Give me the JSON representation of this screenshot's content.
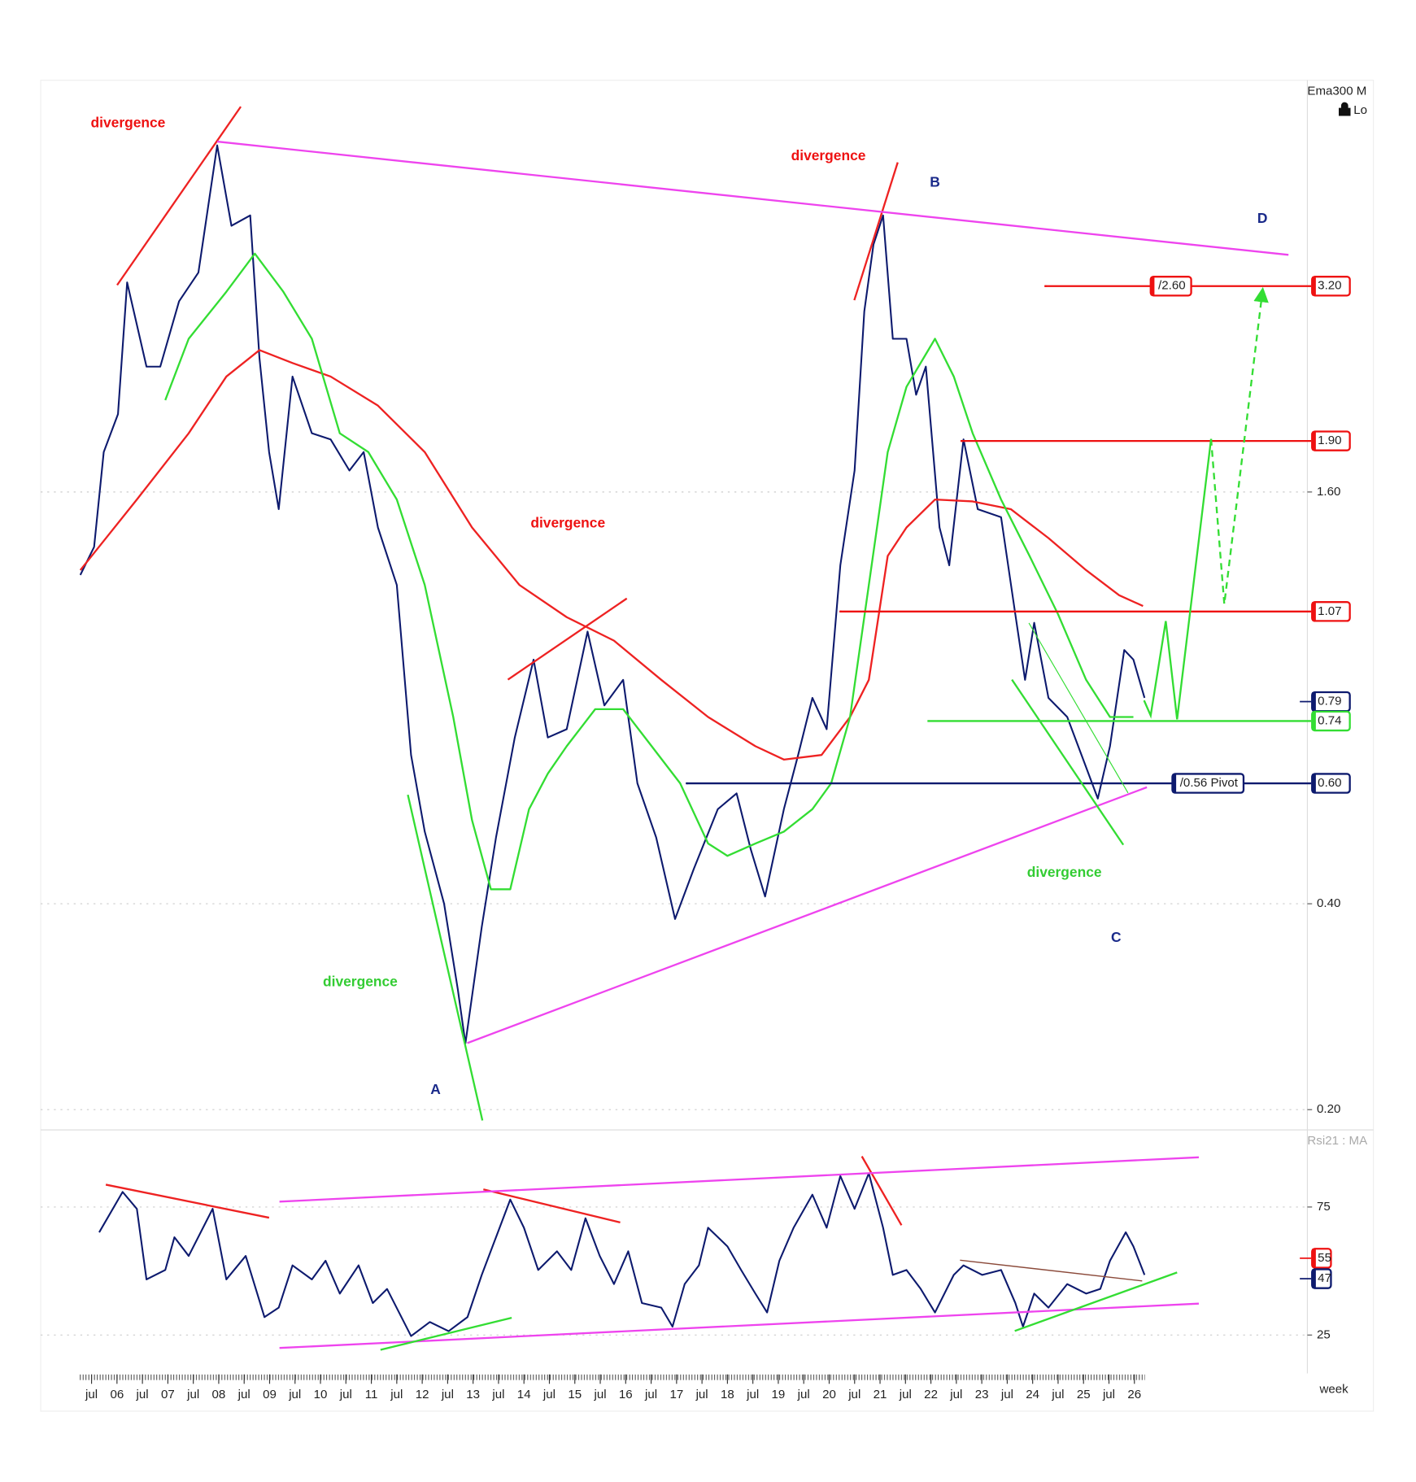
{
  "chart_data": [
    {
      "type": "line",
      "title": "Ema300 M",
      "subtitle": "Lo",
      "log_scale": true,
      "grid": true,
      "xlim": [
        2004.5,
        2029.4
      ],
      "ylim": [
        0.188,
        6.4
      ],
      "yticks": [
        {
          "value": 1.6,
          "label": "1.60"
        },
        {
          "value": 0.4,
          "label": "0.40"
        },
        {
          "value": 0.2,
          "label": "0.20"
        }
      ],
      "series": [
        {
          "color": "#0d1a6e",
          "x": [
            2005.28,
            2005.55,
            2005.74,
            2006.02,
            2006.2,
            2006.58,
            2006.85,
            2007.22,
            2007.6,
            2007.97,
            2008.25,
            2008.62,
            2008.8,
            2008.99,
            2009.18,
            2009.45,
            2009.83,
            2010.2,
            2010.57,
            2010.85,
            2011.13,
            2011.5,
            2011.78,
            2012.05,
            2012.43,
            2012.7,
            2012.85,
            2013.17,
            2013.45,
            2013.82,
            2014.19,
            2014.47,
            2014.84,
            2015.25,
            2015.58,
            2015.95,
            2016.23,
            2016.6,
            2016.97,
            2017.34,
            2017.81,
            2018.18,
            2018.46,
            2018.74,
            2019.11,
            2019.39,
            2019.67,
            2019.95,
            2020.22,
            2020.5,
            2020.69,
            2020.87,
            2021.06,
            2021.25,
            2021.52,
            2021.71,
            2021.9,
            2022.17,
            2022.36,
            2022.64,
            2022.92,
            2023.38,
            2023.66,
            2023.85,
            2024.03,
            2024.31,
            2024.68,
            2024.96,
            2025.28,
            2025.52,
            2025.8,
            2025.98,
            2026.2
          ],
          "values": [
            1.21,
            1.33,
            1.83,
            2.08,
            3.24,
            2.44,
            2.44,
            3.04,
            3.35,
            5.14,
            3.92,
            4.06,
            2.51,
            1.83,
            1.51,
            2.36,
            1.95,
            1.91,
            1.72,
            1.83,
            1.42,
            1.17,
            0.66,
            0.51,
            0.4,
            0.3,
            0.25,
            0.37,
            0.5,
            0.7,
            0.91,
            0.7,
            0.72,
            1.0,
            0.78,
            0.85,
            0.6,
            0.5,
            0.38,
            0.45,
            0.55,
            0.58,
            0.48,
            0.41,
            0.55,
            0.66,
            0.8,
            0.72,
            1.25,
            1.72,
            2.94,
            3.68,
            4.06,
            2.68,
            2.68,
            2.22,
            2.44,
            1.42,
            1.25,
            1.91,
            1.51,
            1.47,
            1.06,
            0.85,
            1.03,
            0.8,
            0.75,
            0.66,
            0.57,
            0.68,
            0.94,
            0.91,
            0.8
          ]
        },
        {
          "color": "#ee2222",
          "x": [
            2005.28,
            2006.39,
            2007.41,
            2008.15,
            2008.8,
            2009.45,
            2010.2,
            2011.13,
            2012.05,
            2012.98,
            2013.91,
            2014.84,
            2015.77,
            2016.7,
            2017.62,
            2018.55,
            2019.11,
            2019.85,
            2020.41,
            2020.78,
            2021.15,
            2021.52,
            2022.08,
            2022.82,
            2023.57,
            2024.31,
            2025.05,
            2025.7,
            2026.17
          ],
          "values": [
            1.23,
            1.56,
            1.95,
            2.36,
            2.58,
            2.47,
            2.36,
            2.14,
            1.83,
            1.42,
            1.17,
            1.05,
            0.97,
            0.85,
            0.75,
            0.68,
            0.65,
            0.66,
            0.75,
            0.85,
            1.29,
            1.42,
            1.56,
            1.55,
            1.51,
            1.37,
            1.23,
            1.13,
            1.09
          ]
        },
        {
          "color": "#33dd33",
          "x": [
            2006.95,
            2007.41,
            2008.15,
            2008.71,
            2009.27,
            2009.83,
            2010.38,
            2010.94,
            2011.5,
            2012.05,
            2012.61,
            2012.98,
            2013.35,
            2013.73,
            2014.1,
            2014.47,
            2014.84,
            2015.4,
            2015.95,
            2016.51,
            2017.07,
            2017.62,
            2018.0,
            2018.55,
            2019.11,
            2019.67,
            2020.04,
            2020.41,
            2020.78,
            2021.15,
            2021.52,
            2022.08,
            2022.45,
            2022.82,
            2023.38,
            2023.94,
            2024.5,
            2025.05,
            2025.52,
            2025.98
          ],
          "values": [
            2.18,
            2.68,
            3.14,
            3.57,
            3.14,
            2.68,
            1.95,
            1.83,
            1.56,
            1.17,
            0.75,
            0.53,
            0.42,
            0.42,
            0.55,
            0.62,
            0.68,
            0.77,
            0.77,
            0.68,
            0.6,
            0.49,
            0.47,
            0.49,
            0.51,
            0.55,
            0.6,
            0.75,
            1.17,
            1.83,
            2.28,
            2.68,
            2.36,
            1.95,
            1.56,
            1.29,
            1.06,
            0.85,
            0.75,
            0.75
          ]
        }
      ],
      "levels": [
        {
          "value": 3.2,
          "label": "3.20",
          "color": "#ee1111",
          "start": 2024.25,
          "tag": "/2.60"
        },
        {
          "value": 1.9,
          "label": "1.90",
          "color": "#ee1111",
          "start": 2022.6
        },
        {
          "value": 1.07,
          "label": "1.07",
          "color": "#ee1111",
          "start": 2020.22
        },
        {
          "value": 0.79,
          "label": "0.79",
          "color": "#0d1a6e"
        },
        {
          "value": 0.74,
          "label": "0.74",
          "color": "#33dd33",
          "start": 2021.95
        },
        {
          "value": 0.6,
          "label": "0.60",
          "color": "#0d1a6e",
          "start": 2017.2,
          "tag": "/0.56 Pivot"
        }
      ],
      "annotations": [
        "divergence",
        "divergence",
        "divergence",
        "divergence",
        "divergence",
        "A",
        "B",
        "C",
        "D"
      ]
    },
    {
      "type": "line",
      "title": "Rsi21 : MA",
      "xlabel": "week",
      "grid": true,
      "xlim": [
        2004.5,
        2029.4
      ],
      "ylim": [
        10,
        104
      ],
      "yticks": [
        75,
        25
      ],
      "xticks": [
        {
          "value": 2005.5,
          "label": "jul"
        },
        {
          "value": 2006,
          "label": "06"
        },
        {
          "value": 2006.5,
          "label": "jul"
        },
        {
          "value": 2007,
          "label": "07"
        },
        {
          "value": 2007.5,
          "label": "jul"
        },
        {
          "value": 2008,
          "label": "08"
        },
        {
          "value": 2008.5,
          "label": "jul"
        },
        {
          "value": 2009,
          "label": "09"
        },
        {
          "value": 2009.5,
          "label": "jul"
        },
        {
          "value": 2010,
          "label": "10"
        },
        {
          "value": 2010.5,
          "label": "jul"
        },
        {
          "value": 2011,
          "label": "11"
        },
        {
          "value": 2011.5,
          "label": "jul"
        },
        {
          "value": 2012,
          "label": "12"
        },
        {
          "value": 2012.5,
          "label": "jul"
        },
        {
          "value": 2013,
          "label": "13"
        },
        {
          "value": 2013.5,
          "label": "jul"
        },
        {
          "value": 2014,
          "label": "14"
        },
        {
          "value": 2014.5,
          "label": "jul"
        },
        {
          "value": 2015,
          "label": "15"
        },
        {
          "value": 2015.5,
          "label": "jul"
        },
        {
          "value": 2016,
          "label": "16"
        },
        {
          "value": 2016.5,
          "label": "jul"
        },
        {
          "value": 2017,
          "label": "17"
        },
        {
          "value": 2017.5,
          "label": "jul"
        },
        {
          "value": 2018,
          "label": "18"
        },
        {
          "value": 2018.5,
          "label": "jul"
        },
        {
          "value": 2019,
          "label": "19"
        },
        {
          "value": 2019.5,
          "label": "jul"
        },
        {
          "value": 2020,
          "label": "20"
        },
        {
          "value": 2020.5,
          "label": "jul"
        },
        {
          "value": 2021,
          "label": "21"
        },
        {
          "value": 2021.5,
          "label": "jul"
        },
        {
          "value": 2022,
          "label": "22"
        },
        {
          "value": 2022.5,
          "label": "jul"
        },
        {
          "value": 2023,
          "label": "23"
        },
        {
          "value": 2023.5,
          "label": "jul"
        },
        {
          "value": 2024,
          "label": "24"
        },
        {
          "value": 2024.5,
          "label": "jul"
        },
        {
          "value": 2025,
          "label": "25"
        },
        {
          "value": 2025.5,
          "label": "jul"
        },
        {
          "value": 2026,
          "label": "26"
        }
      ],
      "series": [
        {
          "color": "#0d1a6e",
          "x": [
            2005.65,
            2006.11,
            2006.39,
            2006.58,
            2006.95,
            2007.13,
            2007.41,
            2007.88,
            2008.15,
            2008.53,
            2008.9,
            2009.18,
            2009.45,
            2009.83,
            2010.1,
            2010.38,
            2010.75,
            2011.03,
            2011.31,
            2011.78,
            2012.15,
            2012.52,
            2012.89,
            2013.17,
            2013.45,
            2013.73,
            2014.0,
            2014.28,
            2014.65,
            2014.93,
            2015.21,
            2015.49,
            2015.77,
            2016.05,
            2016.32,
            2016.7,
            2016.92,
            2017.16,
            2017.44,
            2017.62,
            2018.0,
            2018.27,
            2018.55,
            2018.78,
            2019.02,
            2019.3,
            2019.67,
            2019.95,
            2020.22,
            2020.5,
            2020.78,
            2021.06,
            2021.25,
            2021.52,
            2021.8,
            2022.08,
            2022.45,
            2022.64,
            2023.01,
            2023.38,
            2023.66,
            2023.81,
            2024.03,
            2024.31,
            2024.68,
            2025.05,
            2025.33,
            2025.52,
            2025.83,
            2025.98,
            2026.2
          ],
          "values": [
            65.1,
            80.9,
            74.3,
            46.7,
            50.4,
            63.2,
            55.9,
            74.3,
            46.7,
            55.9,
            32.0,
            35.7,
            52.2,
            46.7,
            54.0,
            41.2,
            52.2,
            37.5,
            43.0,
            24.6,
            30.1,
            26.5,
            32.0,
            48.5,
            63.2,
            77.9,
            66.9,
            50.4,
            57.7,
            50.4,
            70.6,
            55.9,
            44.9,
            57.7,
            37.5,
            35.7,
            28.3,
            44.9,
            52.2,
            66.9,
            59.6,
            50.4,
            41.2,
            33.8,
            54.0,
            66.9,
            79.8,
            66.9,
            87.1,
            74.3,
            88.2,
            66.9,
            48.5,
            50.4,
            43.0,
            33.8,
            48.5,
            52.2,
            48.5,
            50.4,
            37.5,
            28.3,
            41.2,
            35.7,
            44.9,
            41.2,
            43.0,
            54.0,
            65.1,
            59.6,
            48.5
          ]
        }
      ],
      "levels": [
        {
          "value": 55,
          "label": "55",
          "color": "#ee1111"
        },
        {
          "value": 47,
          "label": "47",
          "color": "#0d1a6e"
        }
      ]
    }
  ]
}
